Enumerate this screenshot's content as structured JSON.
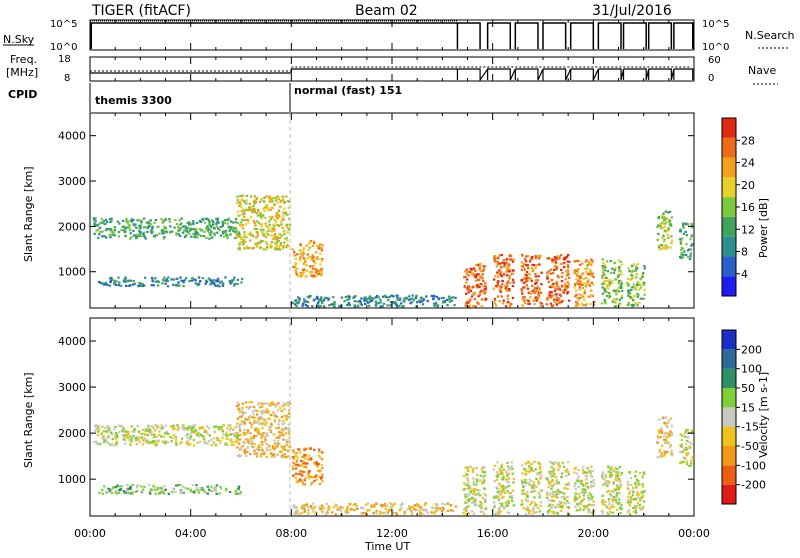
{
  "header": {
    "radar": "TIGER (fitACF)",
    "beam": "Beam 02",
    "date": "31/Jul/2016"
  },
  "strip": {
    "nsky_label": "N.Sky",
    "nsky_ticks": [
      "10^5",
      "10^0"
    ],
    "nsearch_label": "N.Search",
    "nsearch_ticks": [
      "10^5",
      "10^0"
    ],
    "freq_label_1": "Freq.",
    "freq_label_2": "[MHz]",
    "freq_ticks": [
      "18",
      "8"
    ],
    "nave_label": "Nave",
    "nave_ticks": [
      "60",
      "0"
    ],
    "cpid_label": "CPID",
    "cpid_segments": [
      {
        "label": "themis 3300",
        "start_hour": 0,
        "end_hour": 8
      },
      {
        "label": "normal (fast) 151",
        "start_hour": 8,
        "end_hour": 24
      }
    ]
  },
  "axes": {
    "ylabel": "Slant Range [km]",
    "yticks": [
      "1000",
      "2000",
      "3000",
      "4000"
    ],
    "xlabel": "Time UT",
    "xticks": [
      "00:00",
      "04:00",
      "08:00",
      "12:00",
      "16:00",
      "20:00",
      "00:00"
    ]
  },
  "colorbars": {
    "power": {
      "label": "Power [dB]",
      "ticks": [
        "4",
        "8",
        "12",
        "16",
        "20",
        "24",
        "28"
      ],
      "colors": [
        "#1d1df0",
        "#2660c8",
        "#2f8f8f",
        "#3fa45a",
        "#7cc83a",
        "#e8d02a",
        "#f2a01e",
        "#ee6a18",
        "#e02a12"
      ]
    },
    "velocity": {
      "label": "Velocity [m s-1]",
      "ticks": [
        "200",
        "100",
        "50",
        "15",
        "-15",
        "-50",
        "-100",
        "-200"
      ],
      "colors": [
        "#1b2ec8",
        "#2c6a9a",
        "#2f8f66",
        "#7fcf3a",
        "#c8c8c0",
        "#f0c21e",
        "#f29a18",
        "#ee5d16",
        "#e01a14"
      ]
    }
  },
  "chart_data": [
    {
      "type": "heatmap",
      "name": "Power",
      "x_unit": "hours UT",
      "xlim": [
        0,
        24
      ],
      "ylim": [
        200,
        4500
      ],
      "regions": [
        {
          "x0": 0.1,
          "x1": 5.9,
          "y0": 1750,
          "y1": 2200,
          "level": 3
        },
        {
          "x0": 0.3,
          "x1": 6.0,
          "y0": 700,
          "y1": 900,
          "level": 2
        },
        {
          "x0": 5.8,
          "x1": 7.9,
          "y0": 1500,
          "y1": 2700,
          "level": 5
        },
        {
          "x0": 8.0,
          "x1": 9.2,
          "y0": 900,
          "y1": 1700,
          "level": 6
        },
        {
          "x0": 8.0,
          "x1": 14.5,
          "y0": 250,
          "y1": 500,
          "level": 2
        },
        {
          "x0": 14.8,
          "x1": 15.7,
          "y0": 250,
          "y1": 1200,
          "level": 7
        },
        {
          "x0": 16.0,
          "x1": 16.8,
          "y0": 250,
          "y1": 1400,
          "level": 7
        },
        {
          "x0": 17.1,
          "x1": 17.9,
          "y0": 250,
          "y1": 1400,
          "level": 7
        },
        {
          "x0": 18.1,
          "x1": 19.0,
          "y0": 250,
          "y1": 1400,
          "level": 7
        },
        {
          "x0": 19.2,
          "x1": 20.0,
          "y0": 250,
          "y1": 1300,
          "level": 6
        },
        {
          "x0": 20.3,
          "x1": 21.1,
          "y0": 250,
          "y1": 1300,
          "level": 4
        },
        {
          "x0": 21.3,
          "x1": 22.0,
          "y0": 250,
          "y1": 1200,
          "level": 4
        },
        {
          "x0": 22.5,
          "x1": 23.1,
          "y0": 1500,
          "y1": 2400,
          "level": 4
        },
        {
          "x0": 23.4,
          "x1": 23.9,
          "y0": 1300,
          "y1": 2100,
          "level": 3
        }
      ]
    },
    {
      "type": "heatmap",
      "name": "Velocity",
      "x_unit": "hours UT",
      "xlim": [
        0,
        24
      ],
      "ylim": [
        200,
        4500
      ],
      "regions": [
        {
          "x0": 0.1,
          "x1": 5.9,
          "y0": 1750,
          "y1": 2200,
          "level": 4
        },
        {
          "x0": 0.3,
          "x1": 6.0,
          "y0": 700,
          "y1": 900,
          "level": 3
        },
        {
          "x0": 5.8,
          "x1": 7.9,
          "y0": 1500,
          "y1": 2700,
          "level": 5
        },
        {
          "x0": 8.0,
          "x1": 9.2,
          "y0": 900,
          "y1": 1700,
          "level": 6
        },
        {
          "x0": 8.0,
          "x1": 14.5,
          "y0": 250,
          "y1": 500,
          "level": 5
        },
        {
          "x0": 14.8,
          "x1": 15.7,
          "y0": 250,
          "y1": 1300,
          "level": 4
        },
        {
          "x0": 16.0,
          "x1": 16.8,
          "y0": 250,
          "y1": 1400,
          "level": 4
        },
        {
          "x0": 17.1,
          "x1": 17.9,
          "y0": 250,
          "y1": 1400,
          "level": 4
        },
        {
          "x0": 18.1,
          "x1": 19.0,
          "y0": 250,
          "y1": 1400,
          "level": 4
        },
        {
          "x0": 19.2,
          "x1": 20.0,
          "y0": 250,
          "y1": 1300,
          "level": 4
        },
        {
          "x0": 20.3,
          "x1": 21.1,
          "y0": 250,
          "y1": 1300,
          "level": 4
        },
        {
          "x0": 21.3,
          "x1": 22.0,
          "y0": 250,
          "y1": 1200,
          "level": 4
        },
        {
          "x0": 22.5,
          "x1": 23.1,
          "y0": 1500,
          "y1": 2400,
          "level": 5
        },
        {
          "x0": 23.4,
          "x1": 23.9,
          "y0": 1300,
          "y1": 2100,
          "level": 4
        }
      ]
    }
  ]
}
